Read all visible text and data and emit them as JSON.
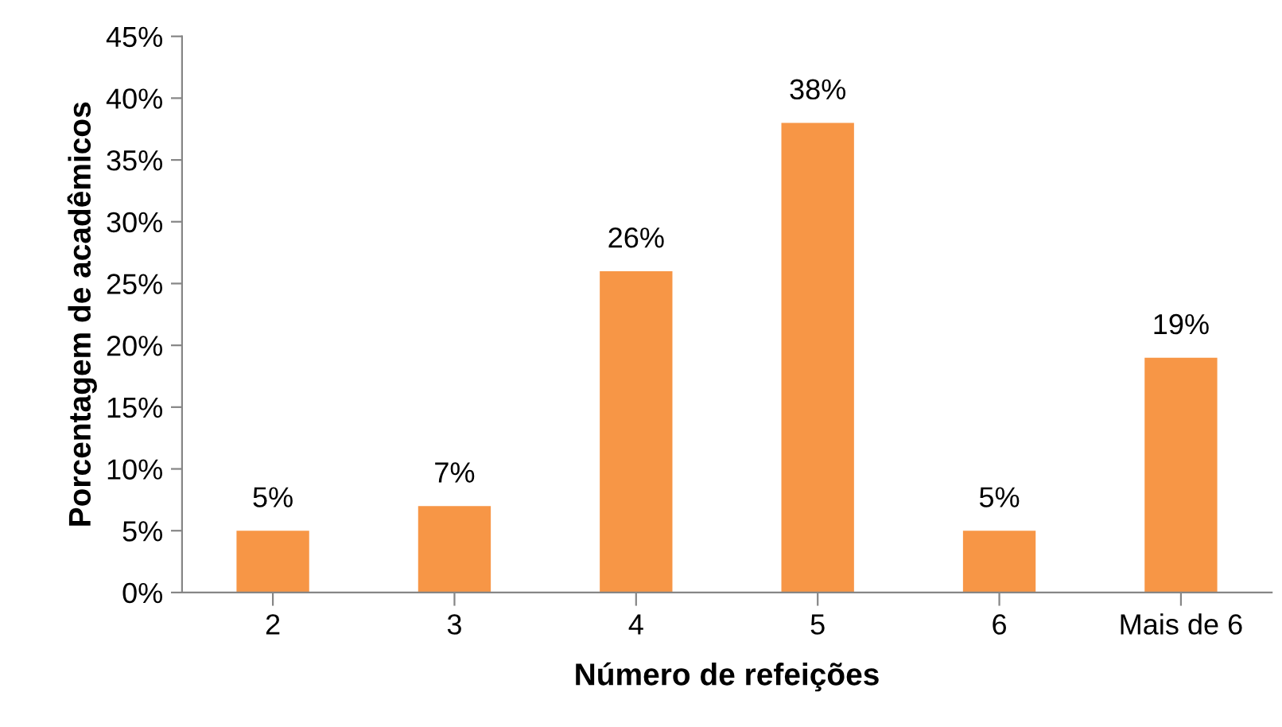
{
  "chart_data": {
    "type": "bar",
    "xlabel": "Número de refeições",
    "ylabel": "Porcentagem de acadêmicos",
    "categories": [
      "2",
      "3",
      "4",
      "5",
      "6",
      "Mais de 6"
    ],
    "series": [
      {
        "color": "#f79646",
        "values": [
          5,
          7,
          26,
          38,
          5,
          19
        ],
        "value_labels": [
          "5%",
          "7%",
          "26%",
          "38%",
          "5%",
          "19%"
        ]
      }
    ],
    "ylim": [
      0,
      45
    ],
    "yticks": [
      {
        "value": 0,
        "label": "0%"
      },
      {
        "value": 5,
        "label": "5%"
      },
      {
        "value": 10,
        "label": "10%"
      },
      {
        "value": 15,
        "label": "15%"
      },
      {
        "value": 20,
        "label": "20%"
      },
      {
        "value": 25,
        "label": "25%"
      },
      {
        "value": 30,
        "label": "30%"
      },
      {
        "value": 35,
        "label": "35%"
      },
      {
        "value": 40,
        "label": "40%"
      },
      {
        "value": 45,
        "label": "45%"
      }
    ],
    "grid": false,
    "legend": false
  }
}
